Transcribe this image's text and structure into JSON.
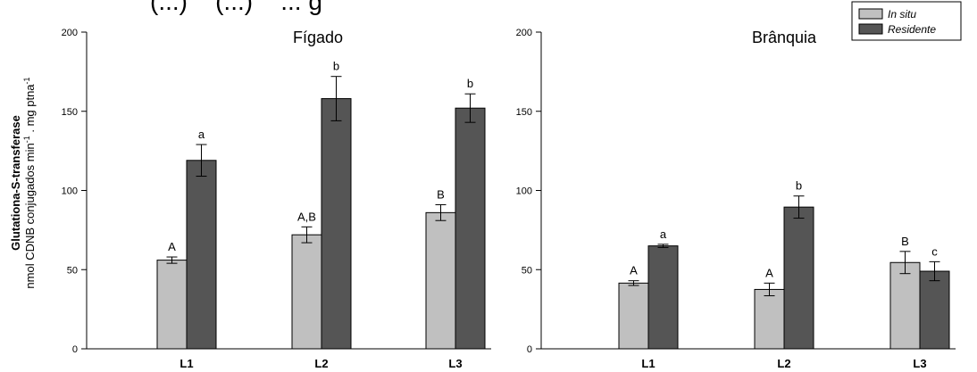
{
  "top_caption": "(...)    (...)    ... g",
  "ylabel": {
    "line1": "Glutationa-S-transferase",
    "line2_pre": "nmol CDNB conjugados min",
    "line2_sup1": "-1",
    "line2_mid": " . mg ptna",
    "line2_sup2": "-1"
  },
  "colors": {
    "in_situ": "#c0c0c0",
    "residente": "#555555"
  },
  "legend": [
    "In situ",
    "Residente"
  ],
  "chart_data": [
    {
      "type": "bar",
      "title": "Fígado",
      "categories": [
        "L1",
        "L2",
        "L3"
      ],
      "ylim": [
        0,
        200
      ],
      "yticks": [
        0,
        50,
        100,
        150,
        200
      ],
      "series": [
        {
          "name": "In situ",
          "values": [
            56,
            72,
            86
          ],
          "errors": [
            2,
            5,
            5
          ],
          "labels": [
            "A",
            "A,B",
            "B"
          ]
        },
        {
          "name": "Residente",
          "values": [
            119,
            158,
            152
          ],
          "errors": [
            10,
            14,
            9
          ],
          "labels": [
            "a",
            "b",
            "b"
          ]
        }
      ]
    },
    {
      "type": "bar",
      "title": "Brânquia",
      "categories": [
        "L1",
        "L2",
        "L3"
      ],
      "ylim": [
        0,
        200
      ],
      "yticks": [
        0,
        50,
        100,
        150,
        200
      ],
      "series": [
        {
          "name": "In situ",
          "values": [
            41.5,
            37.5,
            54.5
          ],
          "errors": [
            1.5,
            4,
            7
          ],
          "labels": [
            "A",
            "A",
            "B"
          ]
        },
        {
          "name": "Residente",
          "values": [
            65,
            89.5,
            49
          ],
          "errors": [
            1,
            7,
            6
          ],
          "labels": [
            "a",
            "b",
            "c"
          ]
        }
      ]
    }
  ]
}
